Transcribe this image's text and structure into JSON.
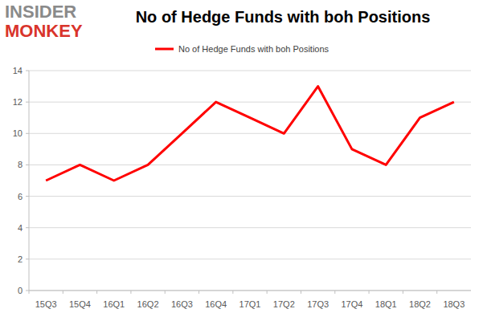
{
  "chart_data": {
    "type": "line",
    "title": "No of Hedge Funds with boh Positions",
    "annotations": [
      "INSIDER",
      "MONKEY"
    ],
    "categories": [
      "15Q3",
      "15Q4",
      "16Q1",
      "16Q2",
      "16Q3",
      "16Q4",
      "17Q1",
      "17Q2",
      "17Q3",
      "17Q4",
      "18Q1",
      "18Q2",
      "18Q3"
    ],
    "series": [
      {
        "name": "No of Hedge Funds with boh Positions",
        "color": "#ff0000",
        "values": [
          7,
          8,
          7,
          8,
          10,
          12,
          11,
          10,
          13,
          9,
          8,
          11,
          12
        ]
      }
    ],
    "ylim": [
      0,
      14
    ],
    "yticks": [
      0,
      2,
      4,
      6,
      8,
      10,
      12,
      14
    ],
    "grid": true,
    "legend": "top"
  }
}
